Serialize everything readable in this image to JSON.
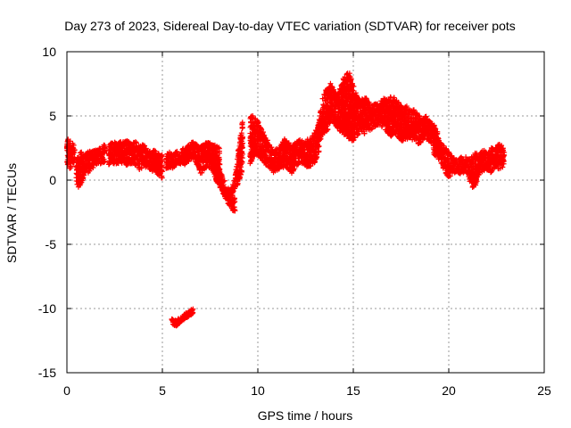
{
  "chart_data": {
    "type": "scatter",
    "title": "Day 273 of 2023, Sidereal Day-to-day VTEC variation (SDTVAR) for receiver pots",
    "xlabel": "GPS time / hours",
    "ylabel": "SDTVAR / TECUs",
    "xlim": [
      0,
      25
    ],
    "ylim": [
      -15,
      10
    ],
    "xticks": [
      0,
      5,
      10,
      15,
      20,
      25
    ],
    "yticks": [
      -15,
      -10,
      -5,
      0,
      5,
      10
    ],
    "xtick_labels": [
      "0",
      "5",
      "10",
      "15",
      "20",
      "25"
    ],
    "ytick_labels": [
      "-15",
      "-10",
      "-5",
      "0",
      "5",
      "10"
    ],
    "grid": true,
    "marker": "plus",
    "series": [
      {
        "name": "SDTVAR",
        "color": "#ff0000",
        "bands": [
          {
            "x": [
              0.0,
              0.1,
              0.2,
              0.3,
              0.4
            ],
            "min": [
              1.0,
              0.9,
              0.9,
              1.2,
              1.2
            ],
            "max": [
              3.3,
              3.2,
              3.0,
              2.9,
              2.8
            ]
          },
          {
            "x": [
              0.5,
              0.6,
              0.7,
              0.8,
              0.9,
              1.0,
              1.2,
              1.4,
              1.6,
              1.8,
              2.0
            ],
            "min": [
              -0.3,
              -0.6,
              -0.5,
              -0.1,
              0.3,
              0.5,
              0.6,
              1.0,
              1.2,
              1.3,
              1.4
            ],
            "max": [
              1.5,
              2.0,
              2.2,
              2.2,
              2.0,
              2.1,
              2.4,
              2.3,
              2.4,
              2.6,
              3.0
            ]
          },
          {
            "x": [
              2.2,
              2.4,
              2.6,
              2.8,
              3.0,
              3.2,
              3.4,
              3.6,
              3.8,
              4.0,
              4.2,
              4.4,
              4.6,
              4.8,
              5.0
            ],
            "min": [
              1.2,
              1.3,
              1.2,
              1.4,
              1.2,
              1.1,
              1.3,
              1.0,
              0.8,
              1.0,
              0.9,
              0.7,
              0.6,
              0.4,
              0.1
            ],
            "max": [
              2.8,
              3.0,
              2.9,
              3.1,
              3.0,
              3.2,
              2.9,
              3.0,
              2.6,
              2.8,
              2.5,
              2.2,
              2.4,
              2.1,
              2.0
            ]
          },
          {
            "x": [
              5.2,
              5.4,
              5.6,
              5.8,
              6.0,
              6.2,
              6.4,
              6.6,
              6.8,
              7.0,
              7.2,
              7.4,
              7.6,
              7.8,
              8.0
            ],
            "min": [
              0.8,
              1.0,
              0.9,
              1.2,
              1.3,
              1.2,
              1.5,
              1.6,
              1.2,
              0.4,
              0.8,
              1.0,
              0.8,
              0.3,
              -0.2
            ],
            "max": [
              2.0,
              2.2,
              2.1,
              2.3,
              2.4,
              2.6,
              2.8,
              3.0,
              2.8,
              2.6,
              2.9,
              3.0,
              2.8,
              2.7,
              2.6
            ]
          },
          {
            "x": [
              7.4,
              7.6,
              7.8,
              8.0,
              8.2,
              8.4,
              8.6,
              8.8
            ],
            "min": [
              1.4,
              0.8,
              0.0,
              -0.6,
              -1.2,
              -1.8,
              -2.2,
              -2.6
            ],
            "max": [
              2.6,
              2.2,
              1.6,
              0.8,
              0.2,
              -0.4,
              -1.0,
              -1.4
            ]
          },
          {
            "x": [
              8.6,
              8.8,
              9.0,
              9.2
            ],
            "min": [
              -1.2,
              -0.8,
              -0.2,
              0.5
            ],
            "max": [
              -0.6,
              0.2,
              2.6,
              4.6
            ]
          },
          {
            "x": [
              9.6,
              9.8,
              10.0,
              10.2,
              10.4,
              10.6,
              10.8,
              11.0,
              11.2,
              11.4,
              11.6,
              11.8,
              12.0,
              12.2,
              12.4,
              12.6,
              12.8,
              13.0,
              13.2
            ],
            "min": [
              1.2,
              1.8,
              2.0,
              1.6,
              1.2,
              1.0,
              0.6,
              0.7,
              0.9,
              1.0,
              0.8,
              0.5,
              1.0,
              1.4,
              1.2,
              1.0,
              1.1,
              1.4,
              2.0
            ],
            "max": [
              5.2,
              5.0,
              4.6,
              4.0,
              3.4,
              2.8,
              2.4,
              2.5,
              2.8,
              3.2,
              3.0,
              2.7,
              3.0,
              3.2,
              3.0,
              3.2,
              3.4,
              3.8,
              4.4
            ]
          },
          {
            "x": [
              13.2,
              13.4,
              13.6,
              13.8,
              14.0,
              14.2,
              14.4,
              14.6,
              14.8,
              15.0,
              15.2,
              15.4,
              15.6,
              15.8,
              16.0,
              16.2,
              16.4,
              16.6,
              16.8,
              17.0,
              17.2,
              17.4,
              17.6,
              17.8,
              18.0,
              18.2,
              18.4,
              18.6,
              18.8,
              19.0,
              19.2,
              19.4
            ],
            "min": [
              2.8,
              3.6,
              3.8,
              4.2,
              4.4,
              4.0,
              3.6,
              3.4,
              3.2,
              3.0,
              3.4,
              3.8,
              3.6,
              3.8,
              4.0,
              4.2,
              4.4,
              3.9,
              3.6,
              3.4,
              3.6,
              3.2,
              3.0,
              3.2,
              3.3,
              3.0,
              2.8,
              3.0,
              3.2,
              3.0,
              2.8,
              2.6
            ],
            "max": [
              4.6,
              6.4,
              7.2,
              7.6,
              7.0,
              6.8,
              7.8,
              8.2,
              8.6,
              7.4,
              6.6,
              6.2,
              6.6,
              6.2,
              5.8,
              6.0,
              6.1,
              6.4,
              6.2,
              6.6,
              6.4,
              6.0,
              5.6,
              5.8,
              5.4,
              5.5,
              5.2,
              4.8,
              5.0,
              4.6,
              4.4,
              4.0
            ]
          },
          {
            "x": [
              19.2,
              19.4,
              19.6,
              19.8,
              20.0,
              20.2,
              20.4,
              20.6,
              20.8,
              21.0,
              21.2,
              21.4,
              21.6,
              21.8,
              22.0,
              22.2,
              22.4,
              22.6,
              22.8,
              22.9
            ],
            "min": [
              2.0,
              1.8,
              1.2,
              0.6,
              0.2,
              0.4,
              0.6,
              0.5,
              0.6,
              0.4,
              -0.6,
              -0.5,
              0.4,
              0.6,
              0.8,
              0.6,
              1.0,
              0.8,
              0.9,
              1.0
            ],
            "max": [
              3.6,
              3.4,
              3.0,
              2.6,
              2.2,
              1.8,
              1.6,
              1.8,
              2.0,
              1.6,
              1.8,
              2.2,
              2.0,
              2.4,
              2.2,
              2.6,
              2.4,
              2.8,
              2.7,
              2.5
            ]
          },
          {
            "x": [
              5.5,
              5.7,
              5.9,
              6.1,
              6.3,
              6.5,
              6.6
            ],
            "min": [
              -11.2,
              -11.4,
              -11.2,
              -10.9,
              -10.7,
              -10.5,
              -10.4
            ],
            "max": [
              -10.8,
              -10.9,
              -10.7,
              -10.5,
              -10.3,
              -10.1,
              -10.0
            ]
          }
        ]
      }
    ]
  }
}
